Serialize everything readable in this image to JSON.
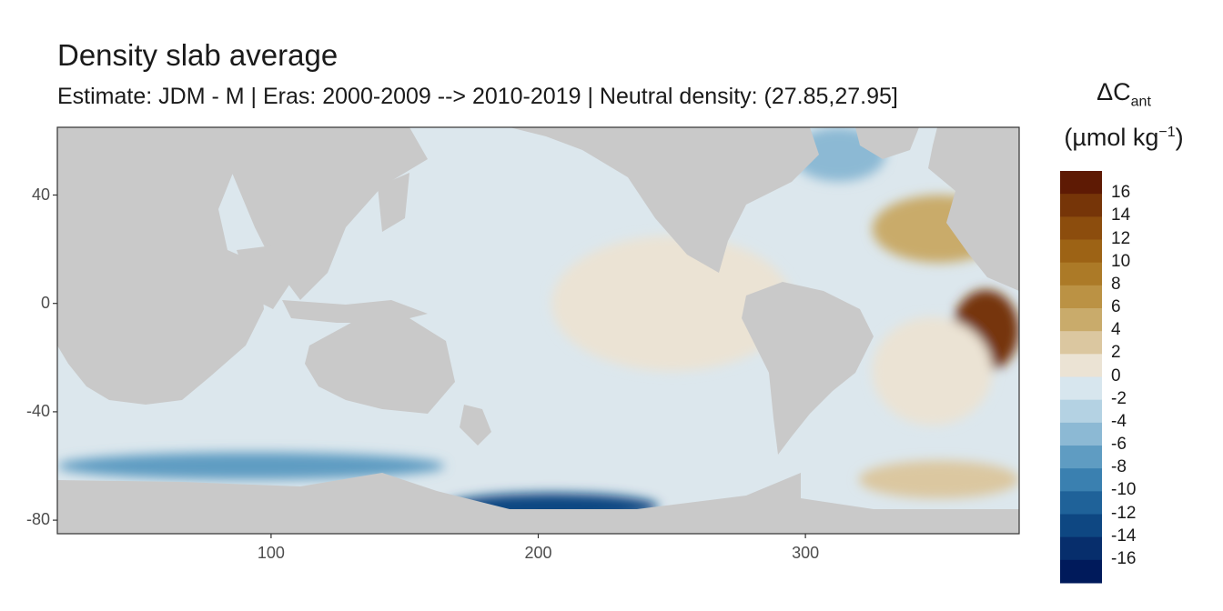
{
  "chart_data": {
    "type": "heatmap",
    "title": "Density slab average",
    "subtitle": "Estimate: JDM - M | Eras: 2000-2009 --> 2010-2019 | Neutral density: (27.85,27.95]",
    "xlabel": "",
    "ylabel": "",
    "xlim": [
      20,
      380
    ],
    "ylim": [
      -85,
      65
    ],
    "x_ticks": [
      "100",
      "200",
      "300"
    ],
    "x_tick_values": [
      100,
      200,
      300
    ],
    "y_ticks": [
      "40",
      "0",
      "-40",
      "-80"
    ],
    "y_tick_values": [
      40,
      0,
      -40,
      -80
    ],
    "grid": false,
    "legend": {
      "position": "right",
      "title_main": "ΔC",
      "title_sub": "ant",
      "unit_base": "(µmol kg",
      "unit_sup": "−1",
      "unit_close": ")",
      "labels": [
        "16",
        "14",
        "12",
        "10",
        "8",
        "6",
        "4",
        "2",
        "0",
        "-2",
        "-4",
        "-6",
        "-8",
        "-10",
        "-12",
        "-14",
        "-16"
      ],
      "colors": [
        "#5e1a04",
        "#763508",
        "#8c4d0d",
        "#9d6315",
        "#ac7a27",
        "#bb9244",
        "#c9ab6b",
        "#dbc7a0",
        "#ebe3d4",
        "#d7e6ee",
        "#b4d2e3",
        "#8cb9d4",
        "#5f9cc2",
        "#3a80b0",
        "#1f6299",
        "#0e4782",
        "#072e6c",
        "#001a5b"
      ]
    },
    "regions": [
      {
        "name": "north-atlantic-positive",
        "lon": [
          325,
          375
        ],
        "lat": [
          15,
          40
        ],
        "value": 5
      },
      {
        "name": "south-atlantic-hotspot",
        "lon": [
          355,
          380
        ],
        "lat": [
          -25,
          5
        ],
        "value": 16
      },
      {
        "name": "south-atlantic-plume",
        "lon": [
          325,
          370
        ],
        "lat": [
          -45,
          -5
        ],
        "value": 2
      },
      {
        "name": "eastern-pacific-positive",
        "lon": [
          205,
          295
        ],
        "lat": [
          -25,
          25
        ],
        "value": 1
      },
      {
        "name": "ross-sea-negative",
        "lon": [
          165,
          245
        ],
        "lat": [
          -80,
          -70
        ],
        "value": -12
      },
      {
        "name": "southern-ocean-negative",
        "lon": [
          20,
          165
        ],
        "lat": [
          -65,
          -55
        ],
        "value": -6
      },
      {
        "name": "weddell-sea-positive",
        "lon": [
          320,
          380
        ],
        "lat": [
          -72,
          -58
        ],
        "value": 3
      },
      {
        "name": "labrador-sea-negative",
        "lon": [
          295,
          330
        ],
        "lat": [
          45,
          65
        ],
        "value": -4
      }
    ]
  }
}
